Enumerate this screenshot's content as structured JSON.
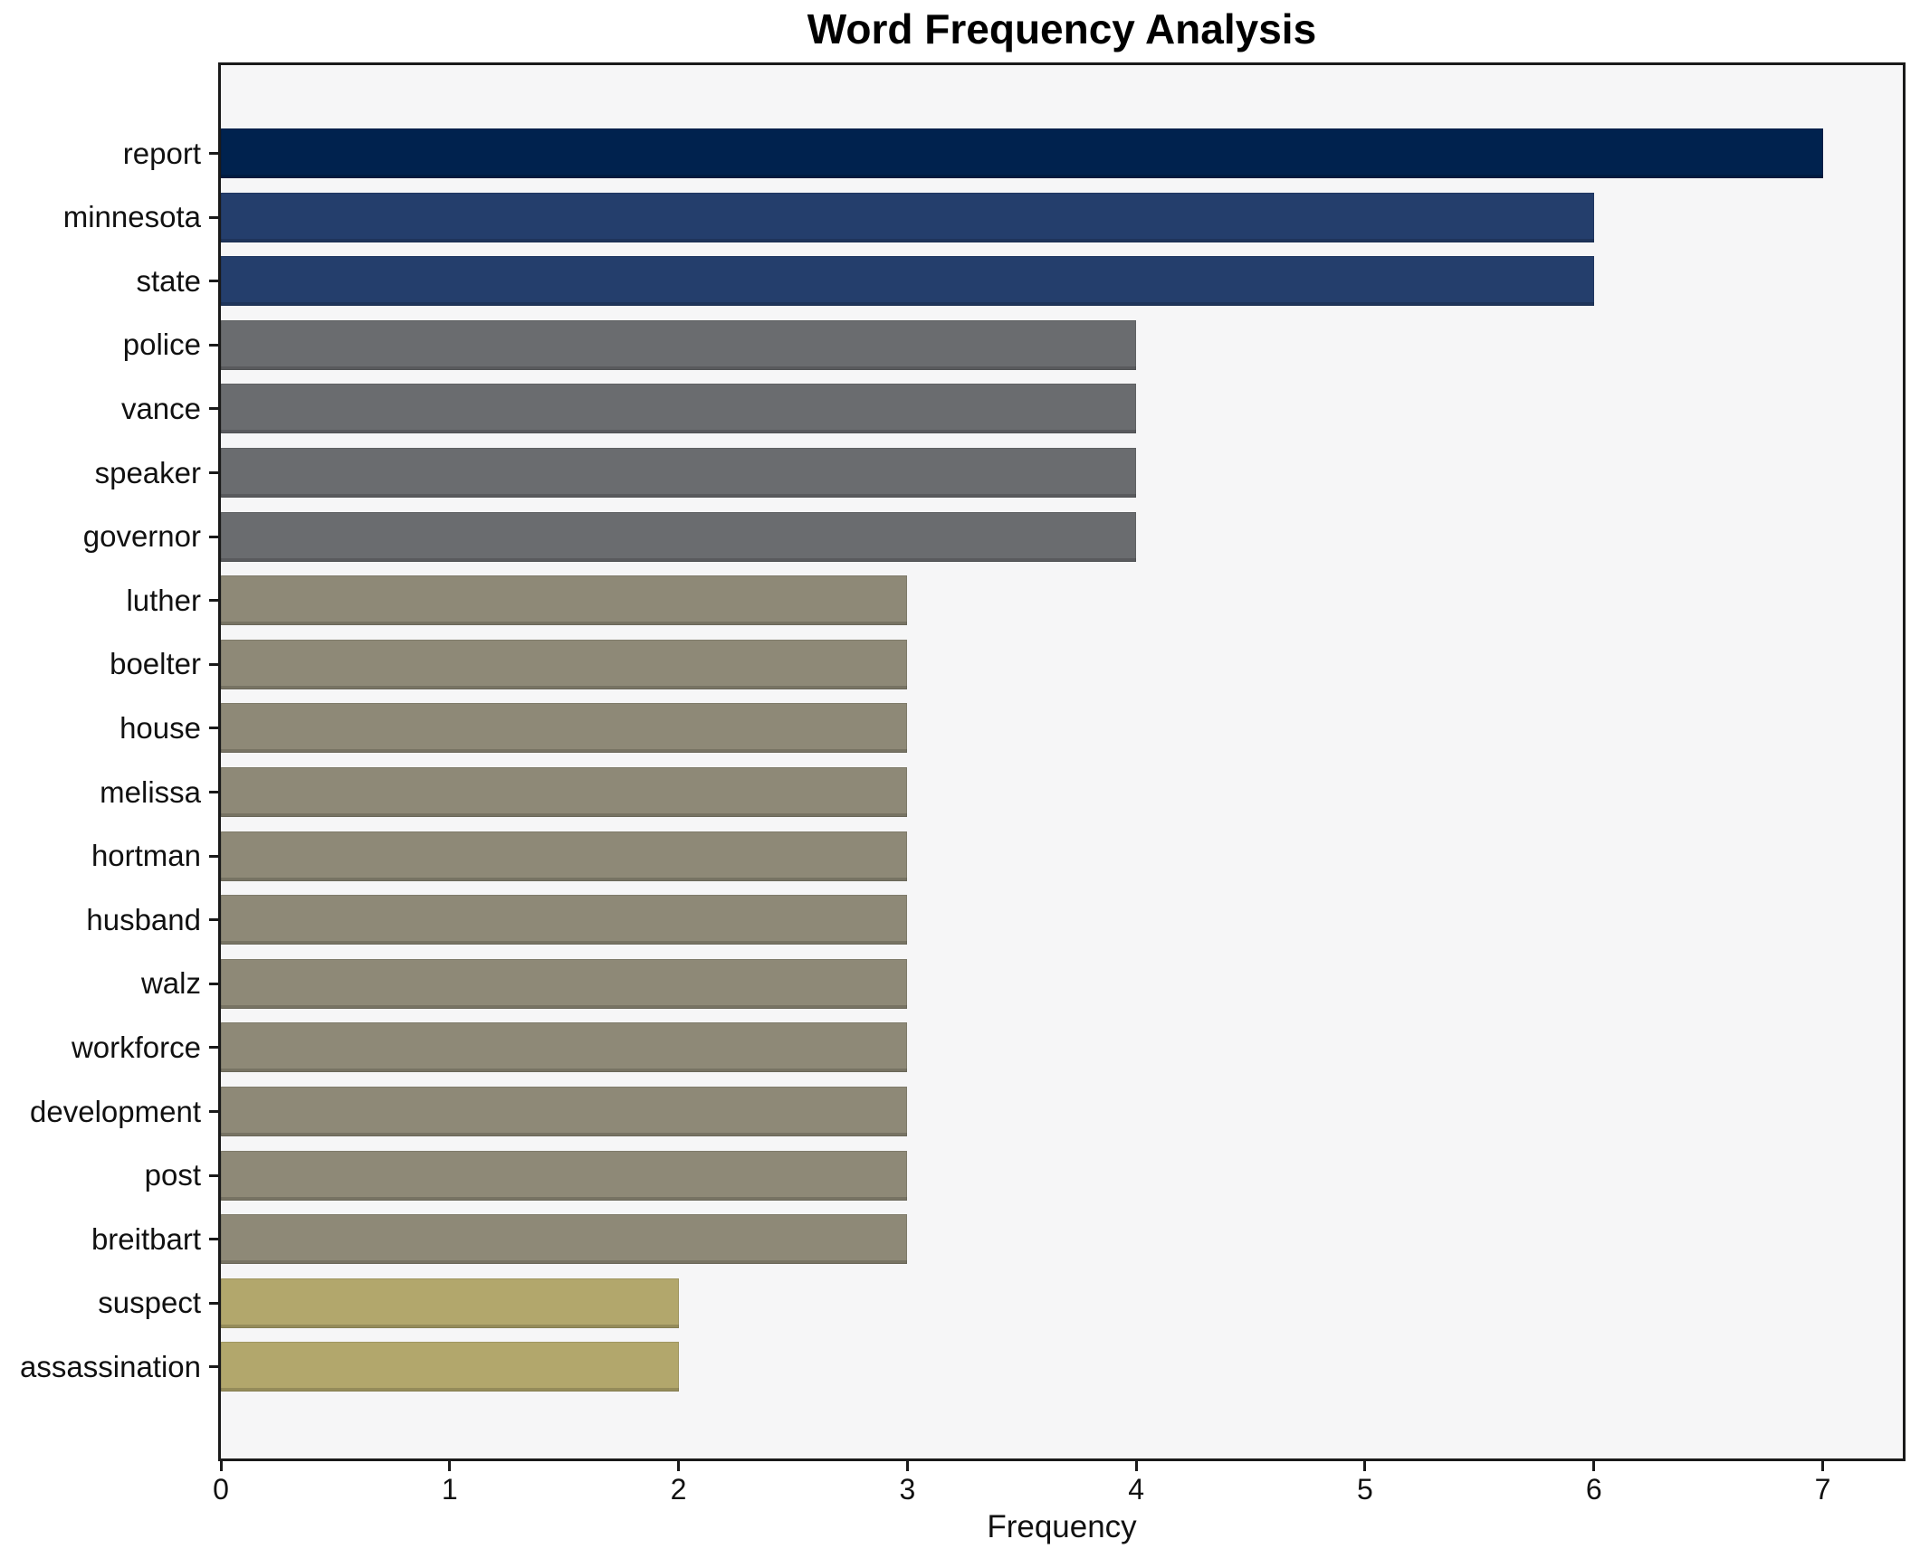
{
  "chart_data": {
    "type": "bar",
    "orientation": "horizontal",
    "title": "Word Frequency Analysis",
    "xlabel": "Frequency",
    "ylabel": "",
    "xlim": [
      0,
      7.35
    ],
    "xticks": [
      0,
      1,
      2,
      3,
      4,
      5,
      6,
      7
    ],
    "grid": false,
    "legend": false,
    "plot_background": "#f6f6f7",
    "figure_background": "#ffffff",
    "spine_color": "#1a1a1a",
    "categories": [
      "report",
      "minnesota",
      "state",
      "police",
      "vance",
      "speaker",
      "governor",
      "luther",
      "boelter",
      "house",
      "melissa",
      "hortman",
      "husband",
      "walz",
      "workforce",
      "development",
      "post",
      "breitbart",
      "suspect",
      "assassination"
    ],
    "values": [
      7,
      6,
      6,
      4,
      4,
      4,
      4,
      3,
      3,
      3,
      3,
      3,
      3,
      3,
      3,
      3,
      3,
      3,
      2,
      2
    ],
    "bar_colors": [
      "#00224e",
      "#243e6c",
      "#243e6c",
      "#6a6c6f",
      "#6a6c6f",
      "#6a6c6f",
      "#6a6c6f",
      "#8e8977",
      "#8e8977",
      "#8e8977",
      "#8e8977",
      "#8e8977",
      "#8e8977",
      "#8e8977",
      "#8e8977",
      "#8e8977",
      "#8e8977",
      "#8e8977",
      "#b2a76c",
      "#b2a76c"
    ]
  }
}
